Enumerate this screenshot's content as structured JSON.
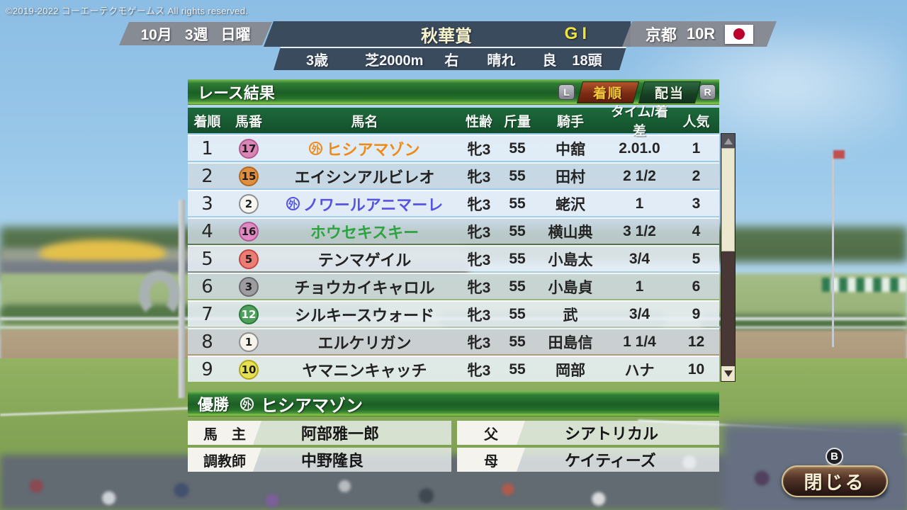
{
  "copyright": "©2019-2022 コーエーテクモゲームス All rights reserved.",
  "header": {
    "date": {
      "month": "10月",
      "week": "3週",
      "day": "日曜"
    },
    "race_name": "秋華賞",
    "grade": "GI",
    "venue": "京都",
    "race_no": "10R",
    "flag": "japan-flag",
    "conditions": {
      "age": "3歳",
      "course": "芝2000m",
      "direction": "右",
      "weather": "晴れ",
      "going": "良",
      "heads": "18頭"
    }
  },
  "panel": {
    "title": "レース結果",
    "tab_left_hint": "L",
    "tab_right_hint": "R",
    "tabs": [
      {
        "label": "着順",
        "active": true
      },
      {
        "label": "配当",
        "active": false
      }
    ],
    "active_tab_color": "#7c2b13",
    "active_tab_text_color": "#f5c63a"
  },
  "table": {
    "headers": [
      "着順",
      "馬番",
      "馬名",
      "性齢",
      "斤量",
      "騎手",
      "タイム/着差",
      "人気"
    ],
    "rows": [
      {
        "pos": "1",
        "num": "17",
        "num_bg": "#d985b5",
        "num_color": "#1d1d1d",
        "num_border": "#b05a90",
        "mark": "外",
        "name": "ヒシアマゾン",
        "name_color": "#ef8a17",
        "sex_age": "牝3",
        "weight": "55",
        "jockey": "中舘",
        "time": "2.01.0",
        "pop": "1"
      },
      {
        "pos": "2",
        "num": "15",
        "num_bg": "#e08f41",
        "num_color": "#1d1d1d",
        "num_border": "#b06a20",
        "mark": "",
        "name": "エイシンアルビレオ",
        "name_color": "#232323",
        "sex_age": "牝3",
        "weight": "55",
        "jockey": "田村",
        "time": "2 1/2",
        "pop": "2"
      },
      {
        "pos": "3",
        "num": "2",
        "num_bg": "#f6f6f1",
        "num_color": "#1d1d1d",
        "num_border": "#8f8f8f",
        "mark": "外",
        "name": "ノワールアニマーレ",
        "name_color": "#5653e4",
        "sex_age": "牝3",
        "weight": "55",
        "jockey": "蛯沢",
        "time": "1",
        "pop": "3"
      },
      {
        "pos": "4",
        "num": "16",
        "num_bg": "#e08ac2",
        "num_color": "#1d1d1d",
        "num_border": "#b05a98",
        "mark": "",
        "name": "ホウセキスキー",
        "name_color": "#2da342",
        "sex_age": "牝3",
        "weight": "55",
        "jockey": "横山典",
        "time": "3 1/2",
        "pop": "4"
      },
      {
        "pos": "5",
        "num": "5",
        "num_bg": "#ec7d76",
        "num_color": "#1d1d1d",
        "num_border": "#c04840",
        "mark": "",
        "name": "テンマゲイル",
        "name_color": "#232323",
        "sex_age": "牝3",
        "weight": "55",
        "jockey": "小島太",
        "time": "3/4",
        "pop": "5"
      },
      {
        "pos": "6",
        "num": "3",
        "num_bg": "#9d9da1",
        "num_color": "#1d1d1d",
        "num_border": "#6a6a6e",
        "mark": "",
        "name": "チョウカイキャロル",
        "name_color": "#232323",
        "sex_age": "牝3",
        "weight": "55",
        "jockey": "小島貞",
        "time": "1",
        "pop": "6"
      },
      {
        "pos": "7",
        "num": "12",
        "num_bg": "#4fa05c",
        "num_color": "#ffffff",
        "num_border": "#2a7a3a",
        "mark": "",
        "name": "シルキースウォード",
        "name_color": "#232323",
        "sex_age": "牝3",
        "weight": "55",
        "jockey": "武",
        "time": "3/4",
        "pop": "9"
      },
      {
        "pos": "8",
        "num": "1",
        "num_bg": "#f5f3ec",
        "num_color": "#1d1d1d",
        "num_border": "#8f8f8f",
        "mark": "",
        "name": "エルケリガン",
        "name_color": "#232323",
        "sex_age": "牝3",
        "weight": "55",
        "jockey": "田島信",
        "time": "1 1/4",
        "pop": "12"
      },
      {
        "pos": "9",
        "num": "10",
        "num_bg": "#e7e151",
        "num_color": "#1d1d1d",
        "num_border": "#b0a820",
        "mark": "",
        "name": "ヤマニンキャッチ",
        "name_color": "#232323",
        "sex_age": "牝3",
        "weight": "55",
        "jockey": "岡部",
        "time": "ハナ",
        "pop": "10"
      }
    ]
  },
  "winner": {
    "label": "優勝",
    "mark": "外",
    "name": "ヒシアマゾン",
    "info": [
      {
        "label": "馬　主",
        "value": "阿部雅一郎"
      },
      {
        "label": "調教師",
        "value": "中野隆良"
      },
      {
        "label": "父",
        "value": "シアトリカル"
      },
      {
        "label": "母",
        "value": "ケイティーズ"
      }
    ]
  },
  "close": {
    "hint": "B",
    "label": "閉じる"
  },
  "colors": {
    "flag_red": "#bc002d",
    "panel_green_dark": "#1c5f27",
    "header_slate": "#374658"
  }
}
